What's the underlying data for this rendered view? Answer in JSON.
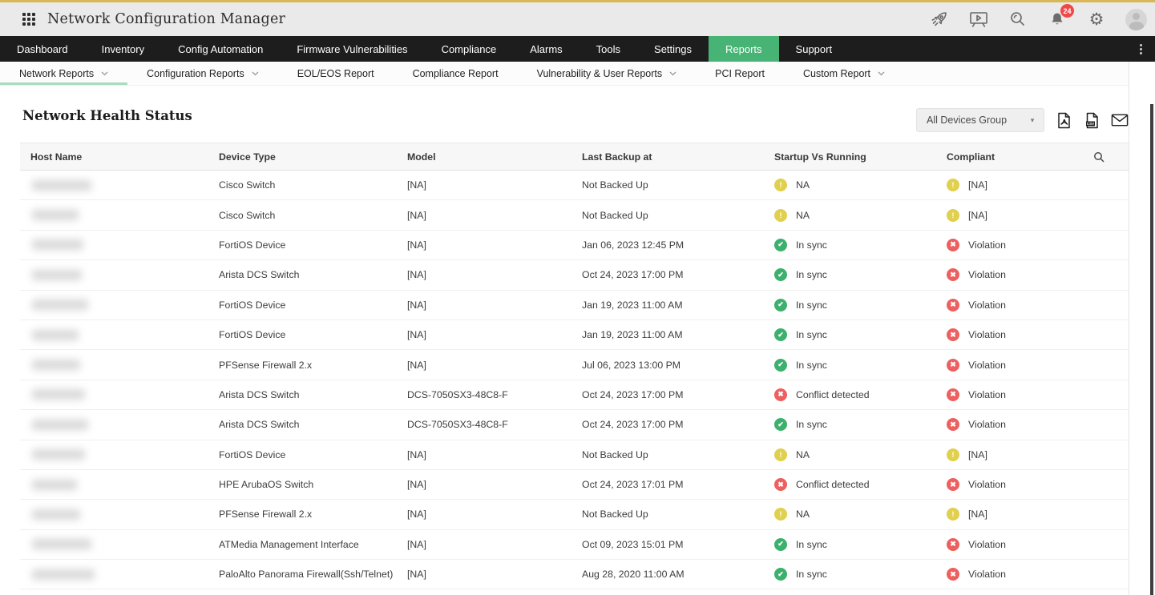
{
  "app": {
    "title": "Network Configuration Manager",
    "notification_count": "24",
    "topbar_icons": [
      "apps-grid-icon",
      "rocket-icon",
      "presentation-icon",
      "search-icon",
      "bell-icon",
      "gear-icon",
      "avatar"
    ]
  },
  "nav": {
    "items": [
      {
        "label": "Dashboard",
        "active": false
      },
      {
        "label": "Inventory",
        "active": false
      },
      {
        "label": "Config Automation",
        "active": false
      },
      {
        "label": "Firmware Vulnerabilities",
        "active": false
      },
      {
        "label": "Compliance",
        "active": false
      },
      {
        "label": "Alarms",
        "active": false
      },
      {
        "label": "Tools",
        "active": false
      },
      {
        "label": "Settings",
        "active": false
      },
      {
        "label": "Reports",
        "active": true
      },
      {
        "label": "Support",
        "active": false
      }
    ],
    "overflow_menu_icon": "kebab-menu-icon"
  },
  "subnav": {
    "items": [
      {
        "label": "Network Reports",
        "has_dropdown": true,
        "active": true
      },
      {
        "label": "Configuration Reports",
        "has_dropdown": true,
        "active": false
      },
      {
        "label": "EOL/EOS Report",
        "has_dropdown": false,
        "active": false
      },
      {
        "label": "Compliance Report",
        "has_dropdown": false,
        "active": false
      },
      {
        "label": "Vulnerability & User Reports",
        "has_dropdown": true,
        "active": false
      },
      {
        "label": "PCI Report",
        "has_dropdown": false,
        "active": false
      },
      {
        "label": "Custom Report",
        "has_dropdown": true,
        "active": false
      }
    ]
  },
  "page": {
    "title": "Network Health Status",
    "group_selector": {
      "value": "All Devices Group"
    },
    "export_icons": [
      "pdf-export-icon",
      "csv-export-icon",
      "email-report-icon"
    ]
  },
  "table": {
    "columns": [
      "Host Name",
      "Device Type",
      "Model",
      "Last Backup at",
      "Startup Vs Running",
      "Compliant"
    ],
    "header_search_icon": "search-icon",
    "host_names_redacted": true,
    "rows": [
      {
        "device_type": "Cisco Switch",
        "model": "[NA]",
        "last_backup": "Not Backed Up",
        "startup_vs_running": {
          "status": "warning",
          "label": "NA"
        },
        "compliant": {
          "status": "warning",
          "label": "[NA]"
        }
      },
      {
        "device_type": "Cisco Switch",
        "model": "[NA]",
        "last_backup": "Not Backed Up",
        "startup_vs_running": {
          "status": "warning",
          "label": "NA"
        },
        "compliant": {
          "status": "warning",
          "label": "[NA]"
        }
      },
      {
        "device_type": "FortiOS Device",
        "model": "[NA]",
        "last_backup": "Jan 06, 2023 12:45 PM",
        "startup_vs_running": {
          "status": "success",
          "label": "In sync"
        },
        "compliant": {
          "status": "error",
          "label": "Violation"
        }
      },
      {
        "device_type": "Arista DCS Switch",
        "model": "[NA]",
        "last_backup": "Oct 24, 2023 17:00 PM",
        "startup_vs_running": {
          "status": "success",
          "label": "In sync"
        },
        "compliant": {
          "status": "error",
          "label": "Violation"
        }
      },
      {
        "device_type": "FortiOS Device",
        "model": "[NA]",
        "last_backup": "Jan 19, 2023 11:00 AM",
        "startup_vs_running": {
          "status": "success",
          "label": "In sync"
        },
        "compliant": {
          "status": "error",
          "label": "Violation"
        }
      },
      {
        "device_type": "FortiOS Device",
        "model": "[NA]",
        "last_backup": "Jan 19, 2023 11:00 AM",
        "startup_vs_running": {
          "status": "success",
          "label": "In sync"
        },
        "compliant": {
          "status": "error",
          "label": "Violation"
        }
      },
      {
        "device_type": "PFSense Firewall 2.x",
        "model": "[NA]",
        "last_backup": "Jul 06, 2023 13:00 PM",
        "startup_vs_running": {
          "status": "success",
          "label": "In sync"
        },
        "compliant": {
          "status": "error",
          "label": "Violation"
        }
      },
      {
        "device_type": "Arista DCS Switch",
        "model": "DCS-7050SX3-48C8-F",
        "last_backup": "Oct 24, 2023 17:00 PM",
        "startup_vs_running": {
          "status": "error",
          "label": "Conflict detected"
        },
        "compliant": {
          "status": "error",
          "label": "Violation"
        }
      },
      {
        "device_type": "Arista DCS Switch",
        "model": "DCS-7050SX3-48C8-F",
        "last_backup": "Oct 24, 2023 17:00 PM",
        "startup_vs_running": {
          "status": "success",
          "label": "In sync"
        },
        "compliant": {
          "status": "error",
          "label": "Violation"
        }
      },
      {
        "device_type": "FortiOS Device",
        "model": "[NA]",
        "last_backup": "Not Backed Up",
        "startup_vs_running": {
          "status": "warning",
          "label": "NA"
        },
        "compliant": {
          "status": "warning",
          "label": "[NA]"
        }
      },
      {
        "device_type": "HPE ArubaOS Switch",
        "model": "[NA]",
        "last_backup": "Oct 24, 2023 17:01 PM",
        "startup_vs_running": {
          "status": "error",
          "label": "Conflict detected"
        },
        "compliant": {
          "status": "error",
          "label": "Violation"
        }
      },
      {
        "device_type": "PFSense Firewall 2.x",
        "model": "[NA]",
        "last_backup": "Not Backed Up",
        "startup_vs_running": {
          "status": "warning",
          "label": "NA"
        },
        "compliant": {
          "status": "warning",
          "label": "[NA]"
        }
      },
      {
        "device_type": "ATMedia Management Interface",
        "model": "[NA]",
        "last_backup": "Oct 09, 2023 15:01 PM",
        "startup_vs_running": {
          "status": "success",
          "label": "In sync"
        },
        "compliant": {
          "status": "error",
          "label": "Violation"
        }
      },
      {
        "device_type": "PaloAlto Panorama Firewall(Ssh/Telnet)",
        "model": "[NA]",
        "last_backup": "Aug 28, 2020 11:00 AM",
        "startup_vs_running": {
          "status": "success",
          "label": "In sync"
        },
        "compliant": {
          "status": "error",
          "label": "Violation"
        }
      }
    ]
  },
  "colors": {
    "accent_green": "#47b475",
    "subnav_underline": "#a8dcba",
    "warning_yellow": "#e0d04e",
    "success_green": "#3cb16d",
    "error_red": "#ee5f5f",
    "badge_red": "#f04848",
    "top_line_gold": "#d8b754",
    "nav_background": "#1d1d1d"
  }
}
